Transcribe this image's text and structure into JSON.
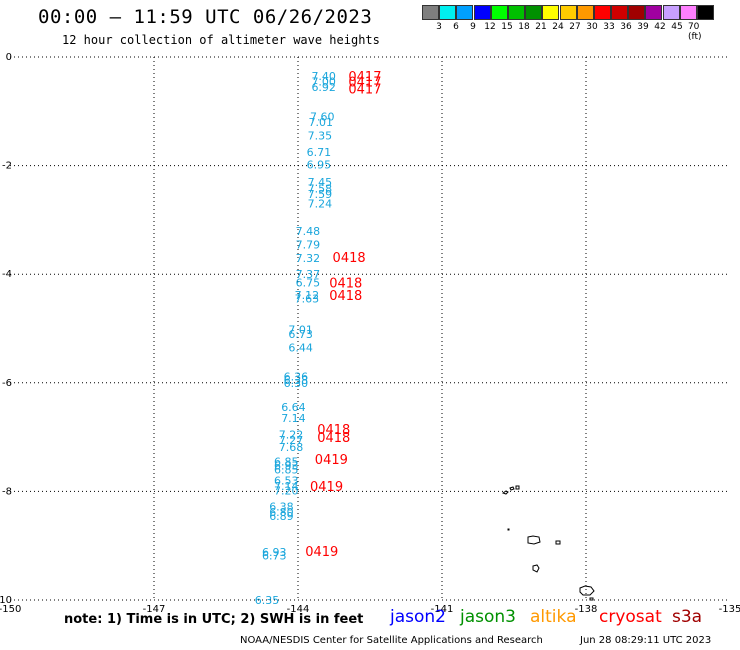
{
  "header": {
    "title": "00:00 – 11:59 UTC 06/26/2023",
    "subtitle": "12 hour collection of altimeter wave heights"
  },
  "legend": {
    "colors": [
      "#7f7f7f",
      "#00f0f0",
      "#00a0ff",
      "#0000ff",
      "#00ff00",
      "#00c000",
      "#009000",
      "#ffff00",
      "#ffcc00",
      "#ff9900",
      "#ff0000",
      "#d00000",
      "#a00000",
      "#a000a0",
      "#c8a0ff",
      "#ff80ff",
      "#000000"
    ],
    "labels": [
      "3",
      "6",
      "9",
      "12",
      "15",
      "18",
      "21",
      "24",
      "27",
      "30",
      "33",
      "36",
      "39",
      "42",
      "45",
      "70 (ft)"
    ]
  },
  "map": {
    "x_ticks": [
      "-150",
      "-147",
      "-144",
      "-141",
      "-138",
      "-135"
    ],
    "y_ticks": [
      "0",
      "-2",
      "-4",
      "-6",
      "-8",
      "-10"
    ],
    "x_range": [
      -150,
      -135
    ],
    "y_range": [
      -10,
      0
    ],
    "swh_color": "#1aa6dc",
    "time_color": "#ff0000",
    "swh_values": [
      {
        "lon": -143.72,
        "lat": -0.35,
        "text": "7.40"
      },
      {
        "lon": -143.72,
        "lat": -0.45,
        "text": "7.00"
      },
      {
        "lon": -143.72,
        "lat": -0.55,
        "text": "6.92"
      },
      {
        "lon": -143.75,
        "lat": -1.1,
        "text": "7.60"
      },
      {
        "lon": -143.78,
        "lat": -1.2,
        "text": "7.01"
      },
      {
        "lon": -143.8,
        "lat": -1.45,
        "text": "7.35"
      },
      {
        "lon": -143.82,
        "lat": -1.75,
        "text": "6.71"
      },
      {
        "lon": -143.82,
        "lat": -1.98,
        "text": "6.95"
      },
      {
        "lon": -143.8,
        "lat": -2.3,
        "text": "7.45"
      },
      {
        "lon": -143.8,
        "lat": -2.42,
        "text": "7.58"
      },
      {
        "lon": -143.8,
        "lat": -2.52,
        "text": "7.59"
      },
      {
        "lon": -143.8,
        "lat": -2.7,
        "text": "7.24"
      },
      {
        "lon": -144.05,
        "lat": -3.2,
        "text": "7.48"
      },
      {
        "lon": -144.05,
        "lat": -3.45,
        "text": "7.79"
      },
      {
        "lon": -144.05,
        "lat": -3.7,
        "text": "7.32"
      },
      {
        "lon": -144.05,
        "lat": -4.0,
        "text": "7.37"
      },
      {
        "lon": -144.05,
        "lat": -4.15,
        "text": "6.75"
      },
      {
        "lon": -144.07,
        "lat": -4.38,
        "text": "7.12"
      },
      {
        "lon": -144.07,
        "lat": -4.45,
        "text": "7.63"
      },
      {
        "lon": -144.2,
        "lat": -5.02,
        "text": "7.01"
      },
      {
        "lon": -144.2,
        "lat": -5.1,
        "text": "6.73"
      },
      {
        "lon": -144.2,
        "lat": -5.35,
        "text": "6.44"
      },
      {
        "lon": -144.3,
        "lat": -5.88,
        "text": "6.36"
      },
      {
        "lon": -144.3,
        "lat": -5.95,
        "text": "6.38"
      },
      {
        "lon": -144.3,
        "lat": -6.0,
        "text": "6.30"
      },
      {
        "lon": -144.35,
        "lat": -6.45,
        "text": "6.64"
      },
      {
        "lon": -144.35,
        "lat": -6.65,
        "text": "7.14"
      },
      {
        "lon": -144.4,
        "lat": -6.95,
        "text": "7.22"
      },
      {
        "lon": -144.4,
        "lat": -7.05,
        "text": "7.27"
      },
      {
        "lon": -144.4,
        "lat": -7.18,
        "text": "7.68"
      },
      {
        "lon": -144.5,
        "lat": -7.45,
        "text": "6.85"
      },
      {
        "lon": -144.5,
        "lat": -7.52,
        "text": "6.93"
      },
      {
        "lon": -144.5,
        "lat": -7.6,
        "text": "6.85"
      },
      {
        "lon": -144.5,
        "lat": -7.8,
        "text": "6.53"
      },
      {
        "lon": -144.5,
        "lat": -7.9,
        "text": "7.14"
      },
      {
        "lon": -144.5,
        "lat": -7.98,
        "text": "7.20"
      },
      {
        "lon": -144.6,
        "lat": -8.28,
        "text": "6.38"
      },
      {
        "lon": -144.6,
        "lat": -8.38,
        "text": "6.80"
      },
      {
        "lon": -144.6,
        "lat": -8.45,
        "text": "6.89"
      },
      {
        "lon": -144.75,
        "lat": -9.12,
        "text": "6.93"
      },
      {
        "lon": -144.75,
        "lat": -9.18,
        "text": "6.73"
      },
      {
        "lon": -144.9,
        "lat": -10.0,
        "text": "6.35"
      }
    ],
    "time_labels": [
      {
        "lon": -142.95,
        "lat": -0.35,
        "text": "0417"
      },
      {
        "lon": -142.95,
        "lat": -0.45,
        "text": "0417"
      },
      {
        "lon": -142.95,
        "lat": -0.58,
        "text": "0417"
      },
      {
        "lon": -143.28,
        "lat": -3.68,
        "text": "0418"
      },
      {
        "lon": -143.35,
        "lat": -4.15,
        "text": "0418"
      },
      {
        "lon": -143.35,
        "lat": -4.38,
        "text": "0418"
      },
      {
        "lon": -143.6,
        "lat": -6.85,
        "text": "0418"
      },
      {
        "lon": -143.6,
        "lat": -7.0,
        "text": "0418"
      },
      {
        "lon": -143.65,
        "lat": -7.4,
        "text": "0419"
      },
      {
        "lon": -143.75,
        "lat": -7.9,
        "text": "0419"
      },
      {
        "lon": -143.85,
        "lat": -9.1,
        "text": "0419"
      }
    ]
  },
  "footer": {
    "note": "note: 1) Time is in UTC; 2) SWH is in feet",
    "satellites": [
      {
        "name": "jason2",
        "color": "#0000ff"
      },
      {
        "name": "jason3",
        "color": "#009000"
      },
      {
        "name": "altika",
        "color": "#ff9900"
      },
      {
        "name": "cryosat",
        "color": "#ff0000"
      },
      {
        "name": "s3a",
        "color": "#a00000"
      }
    ],
    "credit": "NOAA/NESDIS Center for Satellite Applications and Research",
    "timestamp": "Jun 28 08:29:11 UTC 2023"
  }
}
